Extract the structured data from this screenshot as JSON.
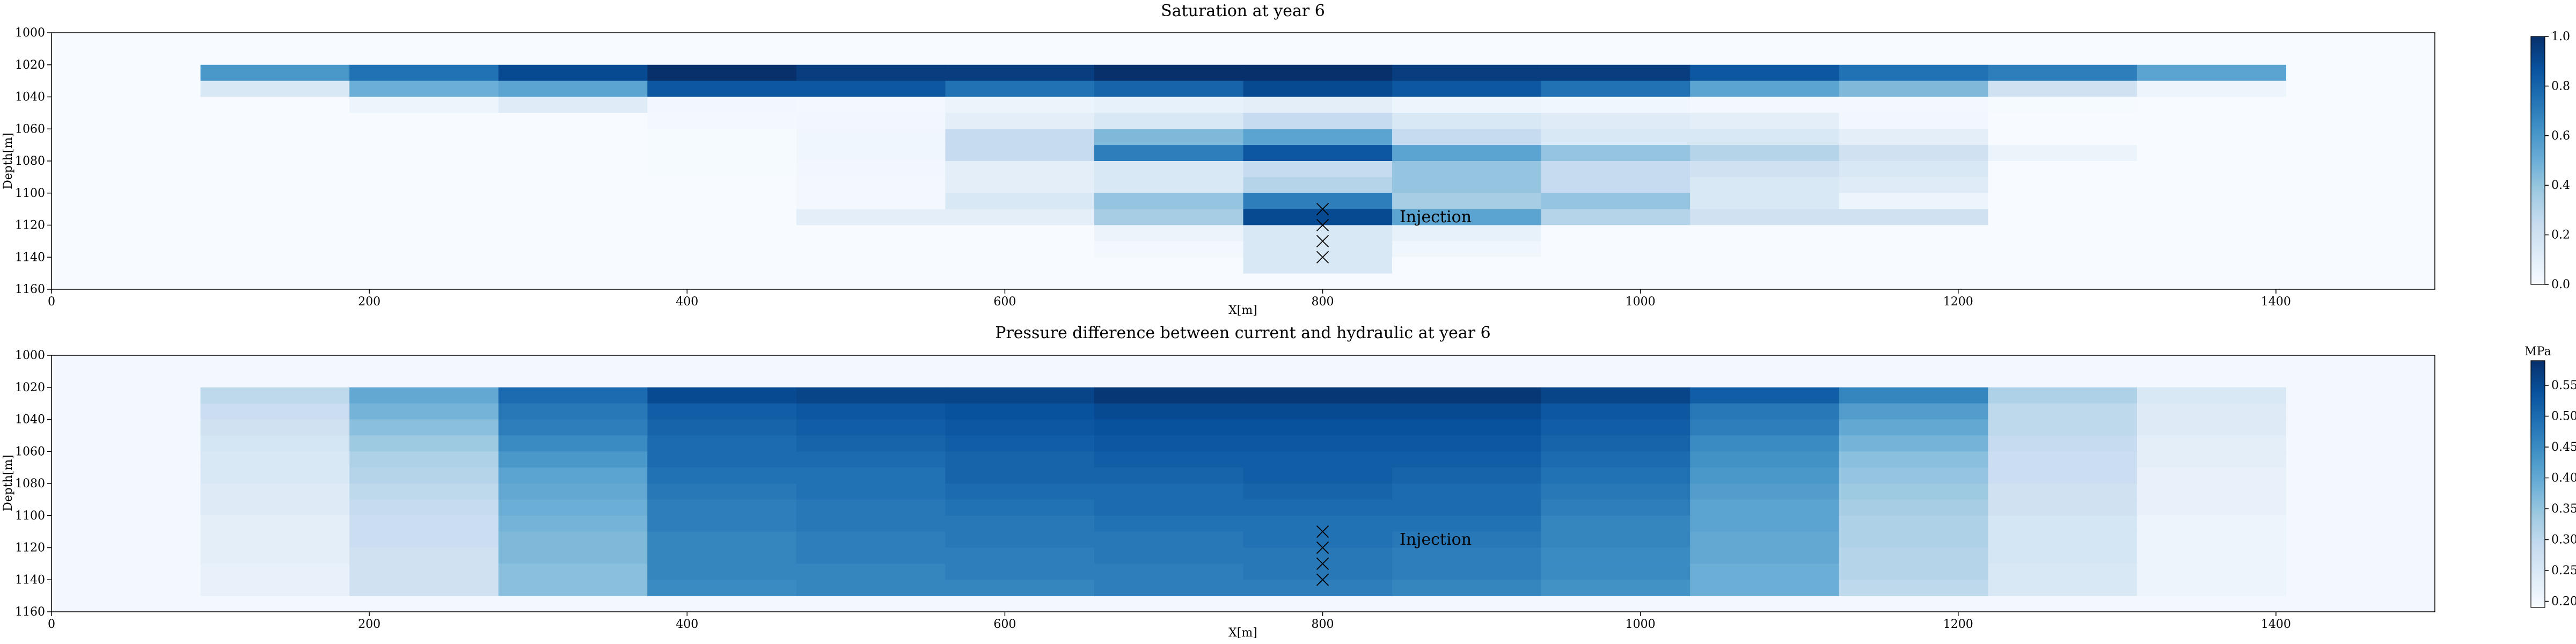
{
  "chart_data": [
    {
      "type": "heatmap",
      "title": "Saturation at year 6",
      "xlabel": "X[m]",
      "ylabel": "Depth[m]",
      "xlim": [
        0,
        1500
      ],
      "ylim": [
        1000,
        1160
      ],
      "xticks": [
        "0",
        "200",
        "400",
        "600",
        "800",
        "1000",
        "1200",
        "1400"
      ],
      "yticks": [
        "1000",
        "1020",
        "1040",
        "1060",
        "1080",
        "1100",
        "1120",
        "1140",
        "1160"
      ],
      "columns_x_range": [
        93.75,
        1406.25
      ],
      "rows_depth_range": [
        1020,
        1150
      ],
      "values": [
        [
          0.6,
          0.75,
          0.9,
          1.0,
          0.95,
          0.95,
          1.0,
          1.0,
          0.95,
          0.95,
          0.85,
          0.75,
          0.7,
          0.55
        ],
        [
          0.15,
          0.5,
          0.55,
          0.85,
          0.85,
          0.75,
          0.8,
          0.9,
          0.85,
          0.75,
          0.55,
          0.45,
          0.2,
          0.05
        ],
        [
          0.0,
          0.05,
          0.12,
          0.03,
          0.02,
          0.06,
          0.08,
          0.1,
          0.05,
          0.04,
          0.02,
          0.02,
          0.01,
          0.0
        ],
        [
          0.0,
          0.0,
          0.0,
          0.02,
          0.03,
          0.1,
          0.15,
          0.25,
          0.15,
          0.12,
          0.1,
          0.03,
          0.0,
          0.0
        ],
        [
          0.0,
          0.0,
          0.0,
          0.01,
          0.04,
          0.25,
          0.45,
          0.55,
          0.25,
          0.15,
          0.15,
          0.1,
          0.0,
          0.0
        ],
        [
          0.0,
          0.0,
          0.0,
          0.01,
          0.04,
          0.25,
          0.7,
          0.85,
          0.55,
          0.4,
          0.3,
          0.2,
          0.06,
          0.0
        ],
        [
          0.0,
          0.0,
          0.0,
          0.01,
          0.03,
          0.1,
          0.15,
          0.25,
          0.4,
          0.25,
          0.2,
          0.15,
          0.0,
          0.0
        ],
        [
          0.0,
          0.0,
          0.0,
          0.0,
          0.02,
          0.1,
          0.15,
          0.3,
          0.4,
          0.25,
          0.15,
          0.12,
          0.0,
          0.0
        ],
        [
          0.0,
          0.0,
          0.0,
          0.0,
          0.02,
          0.15,
          0.4,
          0.7,
          0.35,
          0.4,
          0.15,
          0.05,
          0.0,
          0.0
        ],
        [
          0.0,
          0.0,
          0.0,
          0.0,
          0.1,
          0.1,
          0.35,
          0.9,
          0.55,
          0.3,
          0.2,
          0.2,
          0.0,
          0.0
        ],
        [
          0.0,
          0.0,
          0.0,
          0.0,
          0.0,
          0.0,
          0.06,
          0.15,
          0.08,
          0.0,
          0.0,
          0.0,
          0.0,
          0.0
        ],
        [
          0.0,
          0.0,
          0.0,
          0.0,
          0.0,
          0.0,
          0.02,
          0.15,
          0.04,
          0.0,
          0.0,
          0.0,
          0.0,
          0.0
        ],
        [
          0.0,
          0.0,
          0.0,
          0.0,
          0.0,
          0.0,
          0.0,
          0.15,
          0.0,
          0.0,
          0.0,
          0.0,
          0.0,
          0.0
        ]
      ],
      "colorbar": {
        "min": 0.0,
        "max": 1.0,
        "ticks": [
          "0.0",
          "0.2",
          "0.4",
          "0.6",
          "0.8",
          "1.0"
        ],
        "tick_values": [
          0.0,
          0.2,
          0.4,
          0.6,
          0.8,
          1.0
        ],
        "unit": ""
      },
      "injection": {
        "label": "Injection",
        "x": 800,
        "depths": [
          1110,
          1120,
          1130,
          1140
        ]
      }
    },
    {
      "type": "heatmap",
      "title": "Pressure difference between current and hydraulic at year 6",
      "xlabel": "X[m]",
      "ylabel": "Depth[m]",
      "xlim": [
        0,
        1500
      ],
      "ylim": [
        1000,
        1160
      ],
      "xticks": [
        "0",
        "200",
        "400",
        "600",
        "800",
        "1000",
        "1200",
        "1400"
      ],
      "yticks": [
        "1000",
        "1020",
        "1040",
        "1060",
        "1080",
        "1100",
        "1120",
        "1140",
        "1160"
      ],
      "columns_x_range": [
        93.75,
        1406.25
      ],
      "rows_depth_range": [
        1020,
        1150
      ],
      "values": [
        [
          0.3,
          0.4,
          0.5,
          0.55,
          0.56,
          0.56,
          0.58,
          0.58,
          0.58,
          0.56,
          0.52,
          0.46,
          0.32,
          0.25
        ],
        [
          0.28,
          0.38,
          0.48,
          0.52,
          0.53,
          0.54,
          0.55,
          0.55,
          0.55,
          0.53,
          0.48,
          0.42,
          0.3,
          0.24
        ],
        [
          0.27,
          0.36,
          0.47,
          0.51,
          0.52,
          0.53,
          0.54,
          0.54,
          0.54,
          0.52,
          0.47,
          0.4,
          0.3,
          0.24
        ],
        [
          0.26,
          0.34,
          0.45,
          0.5,
          0.51,
          0.52,
          0.53,
          0.53,
          0.53,
          0.51,
          0.45,
          0.38,
          0.29,
          0.23
        ],
        [
          0.25,
          0.32,
          0.43,
          0.5,
          0.5,
          0.51,
          0.52,
          0.52,
          0.52,
          0.5,
          0.44,
          0.36,
          0.28,
          0.23
        ],
        [
          0.25,
          0.31,
          0.41,
          0.49,
          0.49,
          0.51,
          0.51,
          0.52,
          0.51,
          0.49,
          0.43,
          0.35,
          0.28,
          0.22
        ],
        [
          0.24,
          0.3,
          0.4,
          0.48,
          0.49,
          0.5,
          0.5,
          0.51,
          0.5,
          0.48,
          0.42,
          0.34,
          0.27,
          0.22
        ],
        [
          0.24,
          0.29,
          0.39,
          0.47,
          0.48,
          0.49,
          0.5,
          0.5,
          0.5,
          0.47,
          0.41,
          0.33,
          0.27,
          0.22
        ],
        [
          0.23,
          0.28,
          0.38,
          0.47,
          0.48,
          0.48,
          0.49,
          0.49,
          0.49,
          0.46,
          0.41,
          0.32,
          0.26,
          0.21
        ],
        [
          0.23,
          0.28,
          0.37,
          0.46,
          0.47,
          0.48,
          0.48,
          0.49,
          0.48,
          0.46,
          0.4,
          0.32,
          0.26,
          0.21
        ],
        [
          0.23,
          0.27,
          0.37,
          0.46,
          0.47,
          0.47,
          0.48,
          0.48,
          0.47,
          0.45,
          0.4,
          0.31,
          0.26,
          0.21
        ],
        [
          0.22,
          0.27,
          0.36,
          0.46,
          0.46,
          0.47,
          0.47,
          0.48,
          0.47,
          0.45,
          0.39,
          0.31,
          0.25,
          0.21
        ],
        [
          0.22,
          0.27,
          0.36,
          0.45,
          0.46,
          0.46,
          0.47,
          0.47,
          0.46,
          0.44,
          0.39,
          0.3,
          0.25,
          0.21
        ]
      ],
      "colorbar": {
        "min": 0.19,
        "max": 0.59,
        "ticks": [
          "0.20",
          "0.25",
          "0.30",
          "0.35",
          "0.40",
          "0.45",
          "0.50",
          "0.55"
        ],
        "tick_values": [
          0.2,
          0.25,
          0.3,
          0.35,
          0.4,
          0.45,
          0.5,
          0.55
        ],
        "unit": "MPa"
      },
      "background_value": 0.2,
      "injection": {
        "label": "Injection",
        "x": 800,
        "depths": [
          1110,
          1120,
          1130,
          1140
        ]
      }
    }
  ]
}
